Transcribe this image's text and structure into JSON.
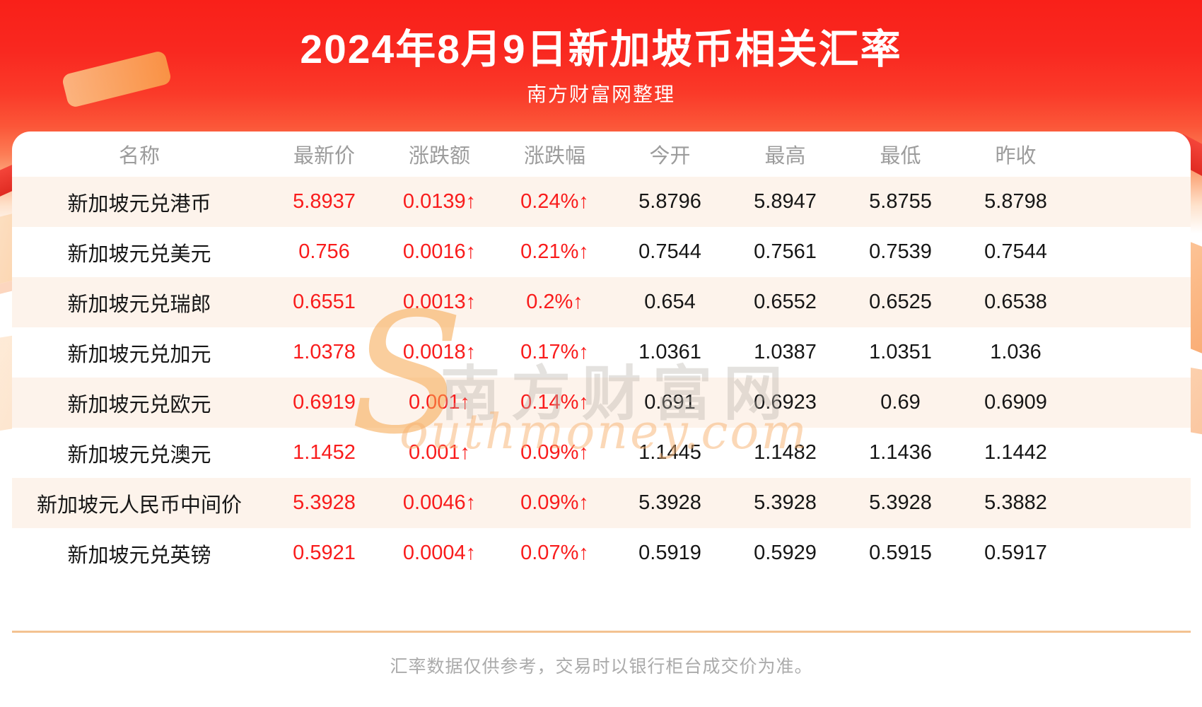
{
  "header": {
    "title": "2024年8月9日新加坡币相关汇率",
    "subtitle": "南方财富网整理"
  },
  "table": {
    "columns": [
      "名称",
      "最新价",
      "涨跌额",
      "涨跌幅",
      "今开",
      "最高",
      "最低",
      "昨收"
    ],
    "rows": [
      {
        "name": "新加坡元兑港币",
        "latest": "5.8937",
        "change": "0.0139↑",
        "change_pct": "0.24%↑",
        "open": "5.8796",
        "high": "5.8947",
        "low": "5.8755",
        "prev_close": "5.8798"
      },
      {
        "name": "新加坡元兑美元",
        "latest": "0.756",
        "change": "0.0016↑",
        "change_pct": "0.21%↑",
        "open": "0.7544",
        "high": "0.7561",
        "low": "0.7539",
        "prev_close": "0.7544"
      },
      {
        "name": "新加坡元兑瑞郎",
        "latest": "0.6551",
        "change": "0.0013↑",
        "change_pct": "0.2%↑",
        "open": "0.654",
        "high": "0.6552",
        "low": "0.6525",
        "prev_close": "0.6538"
      },
      {
        "name": "新加坡元兑加元",
        "latest": "1.0378",
        "change": "0.0018↑",
        "change_pct": "0.17%↑",
        "open": "1.0361",
        "high": "1.0387",
        "low": "1.0351",
        "prev_close": "1.036"
      },
      {
        "name": "新加坡元兑欧元",
        "latest": "0.6919",
        "change": "0.001↑",
        "change_pct": "0.14%↑",
        "open": "0.691",
        "high": "0.6923",
        "low": "0.69",
        "prev_close": "0.6909"
      },
      {
        "name": "新加坡元兑澳元",
        "latest": "1.1452",
        "change": "0.001↑",
        "change_pct": "0.09%↑",
        "open": "1.1445",
        "high": "1.1482",
        "low": "1.1436",
        "prev_close": "1.1442"
      },
      {
        "name": "新加坡元人民币中间价",
        "latest": "5.3928",
        "change": "0.0046↑",
        "change_pct": "0.09%↑",
        "open": "5.3928",
        "high": "5.3928",
        "low": "5.3928",
        "prev_close": "5.3882"
      },
      {
        "name": "新加坡元兑英镑",
        "latest": "0.5921",
        "change": "0.0004↑",
        "change_pct": "0.07%↑",
        "open": "0.5919",
        "high": "0.5929",
        "low": "0.5915",
        "prev_close": "0.5917"
      }
    ]
  },
  "watermark": {
    "s_glyph": "S",
    "cn_text": "南方财富网",
    "en_text": "outhmoney.com"
  },
  "footer": {
    "disclaimer": "汇率数据仅供参考，交易时以银行柜台成交价为准。"
  },
  "colors": {
    "header_red_top": "#f92019",
    "header_fade": "#fee2cc",
    "value_red": "#f91c1c",
    "row_stripe": "#fdf3eb",
    "muted_gray": "#9c9c9c",
    "divider_orange": "#f3c291"
  },
  "chart_data": {
    "type": "table",
    "title": "2024年8月9日新加坡币相关汇率",
    "subtitle": "南方财富网整理",
    "columns": [
      "名称",
      "最新价",
      "涨跌额",
      "涨跌幅",
      "今开",
      "最高",
      "最低",
      "昨收"
    ],
    "rows": [
      [
        "新加坡元兑港币",
        "5.8937",
        "0.0139↑",
        "0.24%↑",
        "5.8796",
        "5.8947",
        "5.8755",
        "5.8798"
      ],
      [
        "新加坡元兑美元",
        "0.756",
        "0.0016↑",
        "0.21%↑",
        "0.7544",
        "0.7561",
        "0.7539",
        "0.7544"
      ],
      [
        "新加坡元兑瑞郎",
        "0.6551",
        "0.0013↑",
        "0.2%↑",
        "0.654",
        "0.6552",
        "0.6525",
        "0.6538"
      ],
      [
        "新加坡元兑加元",
        "1.0378",
        "0.0018↑",
        "0.17%↑",
        "1.0361",
        "1.0387",
        "1.0351",
        "1.036"
      ],
      [
        "新加坡元兑欧元",
        "0.6919",
        "0.001↑",
        "0.14%↑",
        "0.691",
        "0.6923",
        "0.69",
        "0.6909"
      ],
      [
        "新加坡元兑澳元",
        "1.1452",
        "0.001↑",
        "0.09%↑",
        "1.1445",
        "1.1482",
        "1.1436",
        "1.1442"
      ],
      [
        "新加坡元人民币中间价",
        "5.3928",
        "0.0046↑",
        "0.09%↑",
        "5.3928",
        "5.3928",
        "5.3928",
        "5.3882"
      ],
      [
        "新加坡元兑英镑",
        "0.5921",
        "0.0004↑",
        "0.07%↑",
        "0.5919",
        "0.5929",
        "0.5915",
        "0.5917"
      ]
    ],
    "footnote": "汇率数据仅供参考，交易时以银行柜台成交价为准。"
  }
}
